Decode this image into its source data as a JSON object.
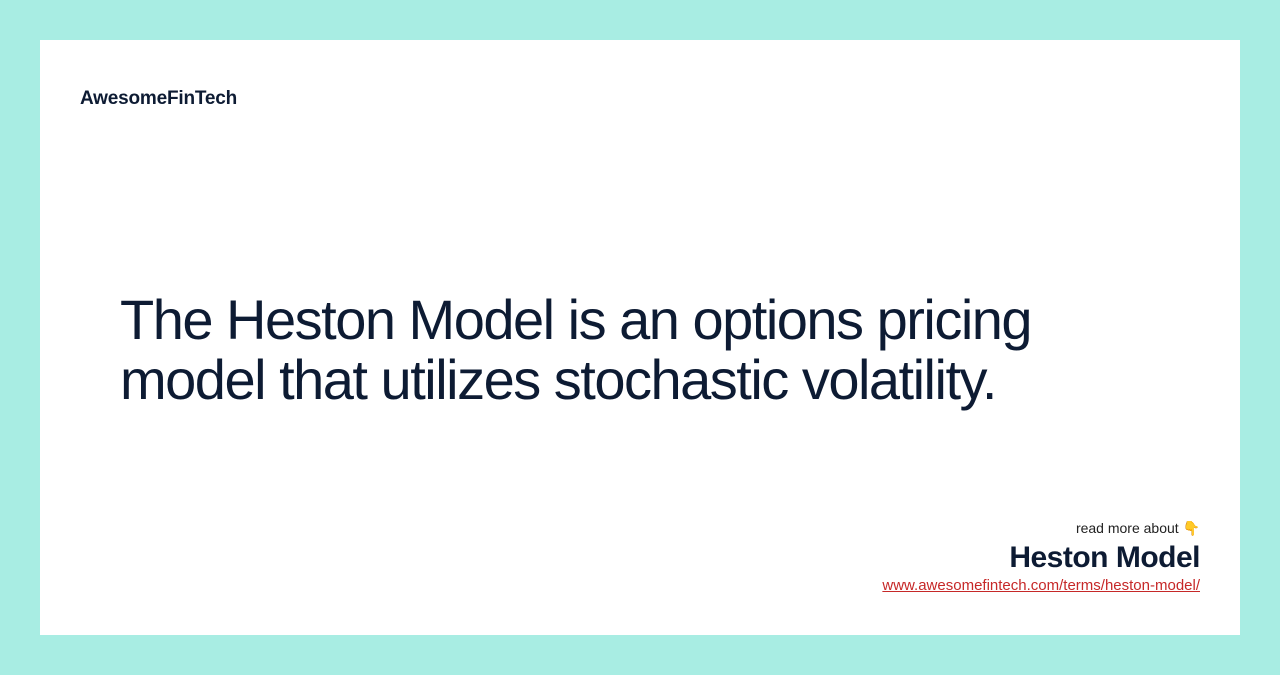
{
  "colors": {
    "bg_outer": "#a8ede3",
    "bg_card": "#ffffff",
    "text_dark": "#0d1b33",
    "link": "#c62828"
  },
  "brand": "AwesomeFinTech",
  "headline": "The Heston Model is an options pricing model that utilizes stochastic volatility.",
  "footer": {
    "read_more": "read more about 👇",
    "topic": "Heston Model",
    "url": "www.awesomefintech.com/terms/heston-model/"
  }
}
